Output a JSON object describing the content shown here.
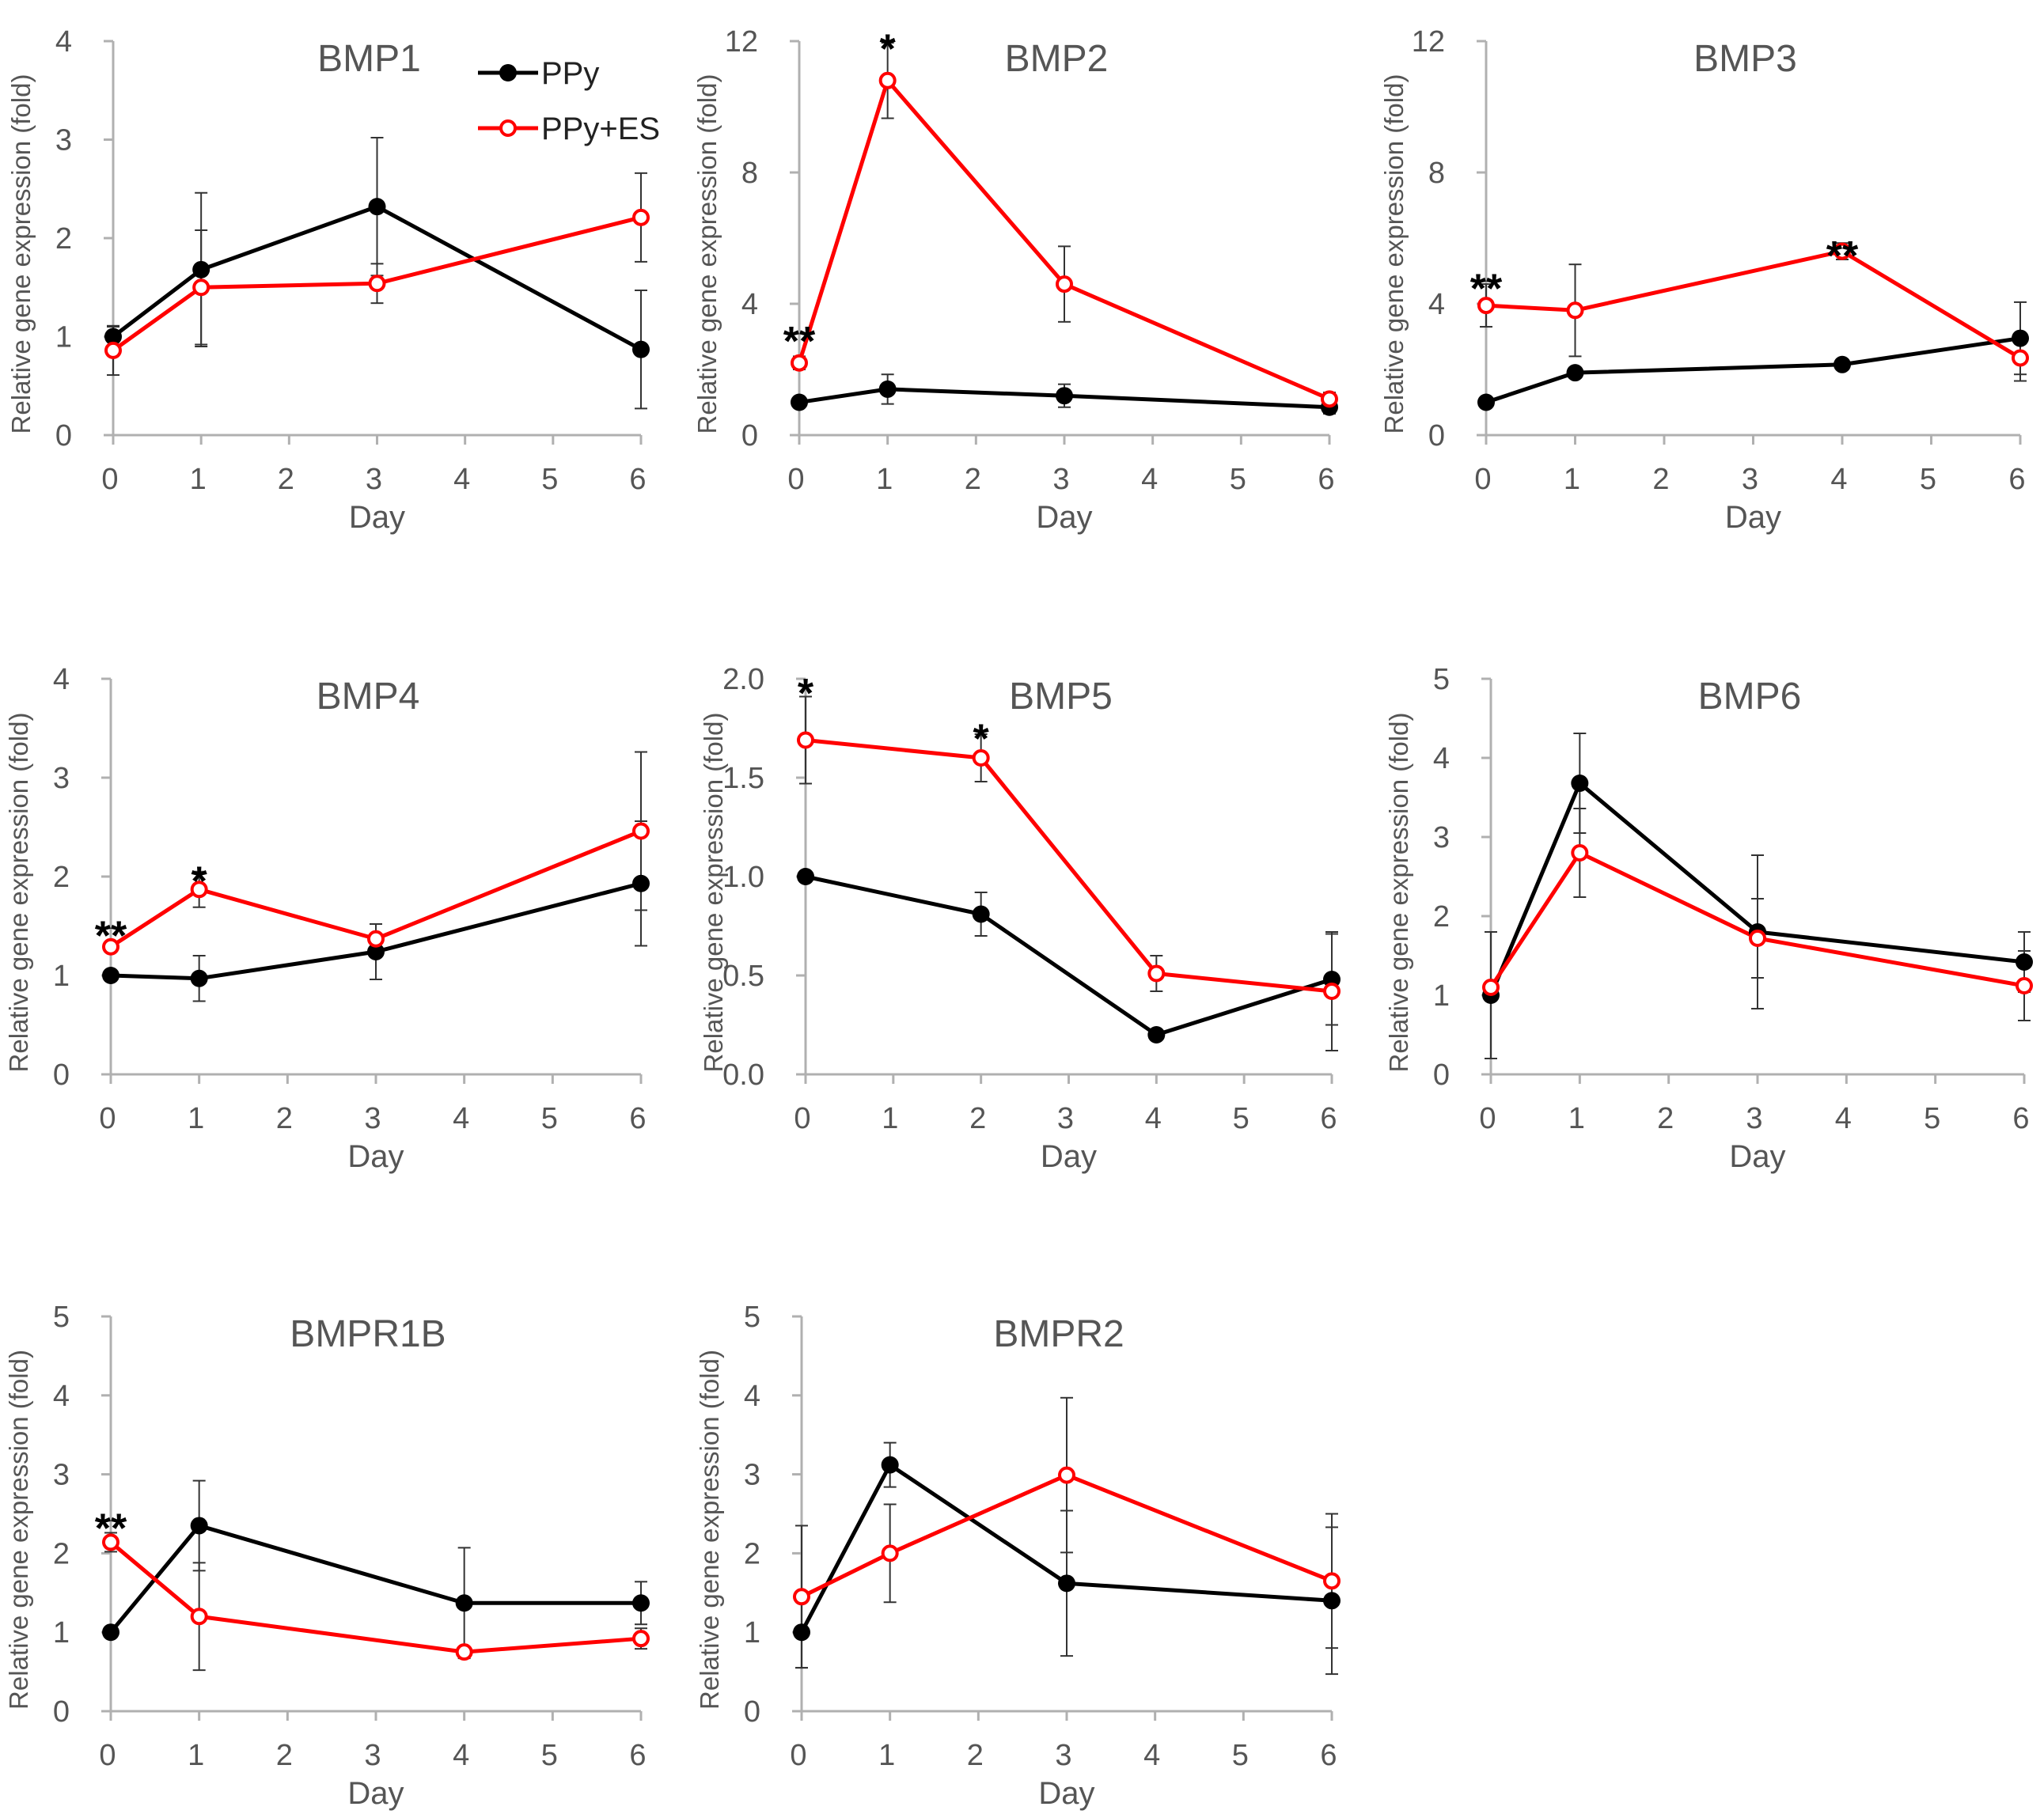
{
  "figure": {
    "legend": [
      {
        "label": "PPy",
        "color": "#000000",
        "marker": "filled-circle"
      },
      {
        "label": "PPy+ES",
        "color": "#ff0000",
        "marker": "open-circle"
      }
    ]
  },
  "chart_data": [
    {
      "type": "line",
      "title": "BMP1",
      "xlabel": "Day",
      "ylabel": "Relative gene expression (fold)",
      "xlim": [
        0,
        6
      ],
      "ylim": [
        0,
        4
      ],
      "xticks": [
        0,
        1,
        2,
        3,
        4,
        5,
        6
      ],
      "yticks": [
        0,
        1,
        2,
        3,
        4
      ],
      "ytick_labels": [
        "0",
        "1",
        "2",
        "3",
        "4"
      ],
      "series": [
        {
          "name": "PPy",
          "x": [
            0,
            1,
            3,
            6
          ],
          "y": [
            1.0,
            1.68,
            2.32,
            0.87
          ],
          "err": [
            0.1,
            0.78,
            0.7,
            0.6
          ]
        },
        {
          "name": "PPy+ES",
          "x": [
            0,
            1,
            3,
            6
          ],
          "y": [
            0.86,
            1.5,
            1.54,
            2.21
          ],
          "err": [
            0.25,
            0.58,
            0.2,
            0.45
          ]
        }
      ],
      "annotations": []
    },
    {
      "type": "line",
      "title": "BMP2",
      "xlabel": "Day",
      "ylabel": "Relative gene expression (fold)",
      "xlim": [
        0,
        6
      ],
      "ylim": [
        0,
        12
      ],
      "xticks": [
        0,
        1,
        2,
        3,
        4,
        5,
        6
      ],
      "yticks": [
        0,
        4,
        8,
        12
      ],
      "ytick_labels": [
        "0",
        "4",
        "8",
        "12"
      ],
      "series": [
        {
          "name": "PPy",
          "x": [
            0,
            1,
            3,
            6
          ],
          "y": [
            1.0,
            1.4,
            1.2,
            0.85
          ],
          "err": [
            0.1,
            0.45,
            0.35,
            0.2
          ]
        },
        {
          "name": "PPy+ES",
          "x": [
            0,
            1,
            3,
            6
          ],
          "y": [
            2.2,
            10.8,
            4.6,
            1.1
          ],
          "err": [
            0.2,
            1.15,
            1.15,
            0.2
          ]
        }
      ],
      "annotations": [
        {
          "text": "**",
          "x": 0,
          "y": 3.3
        },
        {
          "text": "*",
          "x": 1,
          "y": 12.2
        }
      ]
    },
    {
      "type": "line",
      "title": "BMP3",
      "xlabel": "Day",
      "ylabel": "Relative gene expression (fold)",
      "xlim": [
        0,
        6
      ],
      "ylim": [
        0,
        12
      ],
      "xticks": [
        0,
        1,
        2,
        3,
        4,
        5,
        6
      ],
      "yticks": [
        0,
        4,
        8,
        12
      ],
      "ytick_labels": [
        "0",
        "4",
        "8",
        "12"
      ],
      "series": [
        {
          "name": "PPy",
          "x": [
            0,
            1,
            4,
            6
          ],
          "y": [
            1.0,
            1.9,
            2.15,
            2.95
          ],
          "err": [
            0.1,
            0.15,
            0.15,
            1.1
          ]
        },
        {
          "name": "PPy+ES",
          "x": [
            0,
            4,
            1,
            6
          ],
          "y": [
            3.95,
            5.6,
            3.8,
            2.35
          ],
          "err": [
            0.65,
            0.25,
            1.4,
            0.7
          ]
        }
      ],
      "annotations": [
        {
          "text": "**",
          "x": 0,
          "y": 4.9
        },
        {
          "text": "**",
          "x": 4,
          "y": 5.9
        }
      ]
    },
    {
      "type": "line",
      "title": "BMP4",
      "xlabel": "Day",
      "ylabel": "Relative gene expression (fold)",
      "xlim": [
        0,
        6
      ],
      "ylim": [
        0,
        4
      ],
      "xticks": [
        0,
        1,
        2,
        3,
        4,
        5,
        6
      ],
      "yticks": [
        0,
        1,
        2,
        3,
        4
      ],
      "ytick_labels": [
        "0",
        "1",
        "2",
        "3",
        "4"
      ],
      "series": [
        {
          "name": "PPy",
          "x": [
            0,
            1,
            3,
            6
          ],
          "y": [
            1.0,
            0.97,
            1.24,
            1.93
          ],
          "err": [
            0.05,
            0.23,
            0.28,
            0.63
          ]
        },
        {
          "name": "PPy+ES",
          "x": [
            0,
            1,
            3,
            6
          ],
          "y": [
            1.29,
            1.87,
            1.37,
            2.46
          ],
          "err": [
            0.05,
            0.18,
            0.15,
            0.8
          ]
        }
      ],
      "annotations": [
        {
          "text": "**",
          "x": 0,
          "y": 1.55
        },
        {
          "text": "*",
          "x": 1,
          "y": 2.1
        }
      ]
    },
    {
      "type": "line",
      "title": "BMP5",
      "xlabel": "Day",
      "ylabel": "Relative gene expression (fold)",
      "xlim": [
        0,
        6
      ],
      "ylim": [
        0,
        2
      ],
      "xticks": [
        0,
        1,
        2,
        3,
        4,
        5,
        6
      ],
      "yticks": [
        0,
        0.5,
        1,
        1.5,
        2
      ],
      "ytick_labels": [
        "0.0",
        "0.5",
        "1.0",
        "1.5",
        "2.0"
      ],
      "series": [
        {
          "name": "PPy",
          "x": [
            0,
            2,
            4,
            6
          ],
          "y": [
            1.0,
            0.81,
            0.2,
            0.48
          ],
          "err": [
            0.02,
            0.11,
            0.02,
            0.23
          ]
        },
        {
          "name": "PPy+ES",
          "x": [
            0,
            2,
            4,
            6
          ],
          "y": [
            1.69,
            1.6,
            0.51,
            0.42
          ],
          "err": [
            0.22,
            0.12,
            0.09,
            0.3
          ]
        }
      ],
      "annotations": [
        {
          "text": "*",
          "x": 0,
          "y": 2.0
        },
        {
          "text": "*",
          "x": 2,
          "y": 1.77
        }
      ]
    },
    {
      "type": "line",
      "title": "BMP6",
      "xlabel": "Day",
      "ylabel": "Relative gene expression (fold)",
      "xlim": [
        0,
        6
      ],
      "ylim": [
        0,
        5
      ],
      "xticks": [
        0,
        1,
        2,
        3,
        4,
        5,
        6
      ],
      "yticks": [
        0,
        1,
        2,
        3,
        4,
        5
      ],
      "ytick_labels": [
        "0",
        "1",
        "2",
        "3",
        "4",
        "5"
      ],
      "series": [
        {
          "name": "PPy",
          "x": [
            0,
            1,
            3,
            6
          ],
          "y": [
            1.0,
            3.68,
            1.8,
            1.42
          ],
          "err": [
            0.8,
            0.63,
            0.97,
            0.38
          ]
        },
        {
          "name": "PPy+ES",
          "x": [
            0,
            1,
            3,
            6
          ],
          "y": [
            1.1,
            2.8,
            1.72,
            1.12
          ],
          "err": [
            0.05,
            0.56,
            0.5,
            0.44
          ]
        }
      ],
      "annotations": []
    },
    {
      "type": "line",
      "title": "BMPR1B",
      "xlabel": "Day",
      "ylabel": "Relative gene expression (fold)",
      "xlim": [
        0,
        6
      ],
      "ylim": [
        0,
        5
      ],
      "xticks": [
        0,
        1,
        2,
        3,
        4,
        5,
        6
      ],
      "yticks": [
        0,
        1,
        2,
        3,
        4,
        5
      ],
      "ytick_labels": [
        "0",
        "1",
        "2",
        "3",
        "4",
        "5"
      ],
      "series": [
        {
          "name": "PPy",
          "x": [
            0,
            1,
            4,
            6
          ],
          "y": [
            1.0,
            2.35,
            1.37,
            1.37
          ],
          "err": [
            0.05,
            0.57,
            0.7,
            0.27
          ]
        },
        {
          "name": "PPy+ES",
          "x": [
            0,
            1,
            4,
            6
          ],
          "y": [
            2.14,
            1.2,
            0.75,
            0.92
          ],
          "err": [
            0.12,
            0.68,
            0.05,
            0.13
          ]
        }
      ],
      "annotations": [
        {
          "text": "**",
          "x": 0,
          "y": 2.5
        }
      ]
    },
    {
      "type": "line",
      "title": "BMPR2",
      "xlabel": "Day",
      "ylabel": "Relative gene expression (fold)",
      "xlim": [
        0,
        6
      ],
      "ylim": [
        0,
        5
      ],
      "xticks": [
        0,
        1,
        2,
        3,
        4,
        5,
        6
      ],
      "yticks": [
        0,
        1,
        2,
        3,
        4,
        5
      ],
      "ytick_labels": [
        "0",
        "1",
        "2",
        "3",
        "4",
        "5"
      ],
      "series": [
        {
          "name": "PPy",
          "x": [
            0,
            1,
            3,
            6
          ],
          "y": [
            1.0,
            3.12,
            1.62,
            1.4
          ],
          "err": [
            0.45,
            0.28,
            0.92,
            0.93
          ]
        },
        {
          "name": "PPy+ES",
          "x": [
            0,
            1,
            3,
            6
          ],
          "y": [
            1.45,
            2.0,
            2.99,
            1.65
          ],
          "err": [
            0.9,
            0.62,
            0.98,
            0.85
          ]
        }
      ],
      "annotations": []
    }
  ]
}
